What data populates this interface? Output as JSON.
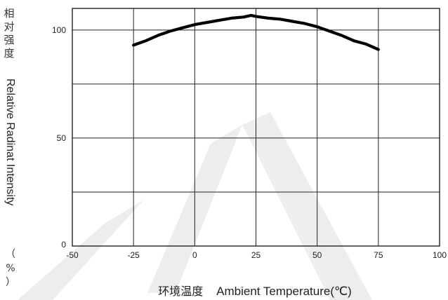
{
  "chart_data": {
    "type": "line",
    "x": [
      -25,
      -20,
      -15,
      -10,
      -5,
      0,
      5,
      10,
      15,
      20,
      23,
      25,
      30,
      35,
      40,
      45,
      50,
      55,
      60,
      65,
      70,
      75
    ],
    "series": [
      {
        "values": [
          93,
          95,
          97.5,
          99.5,
          101,
          102.5,
          103.5,
          104.5,
          105.5,
          106,
          106.8,
          106.3,
          105.5,
          105,
          104,
          103,
          101.5,
          99.5,
          97.5,
          95,
          93.5,
          91
        ],
        "color": "#000000"
      }
    ],
    "xlim": [
      -50,
      100
    ],
    "ylim": [
      0,
      110
    ],
    "x_ticks": [
      "-50",
      "-25",
      "0",
      "25",
      "50",
      "75",
      "100"
    ],
    "y_ticks": [
      "0",
      "50",
      "100"
    ],
    "y_grid": [
      0,
      25,
      50,
      75,
      100
    ],
    "grid": true,
    "ylabel_cn": [
      "相",
      "对",
      "强",
      "度"
    ],
    "ylabel_en": "Relative Radinat Intensity",
    "ylabel_unit": [
      "（",
      "%",
      "）"
    ],
    "xlabel_cn": "环境温度",
    "xlabel_en": "Ambient Temperature(℃)"
  }
}
